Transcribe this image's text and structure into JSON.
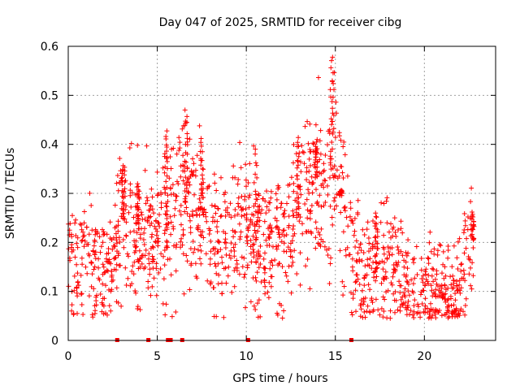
{
  "chart_data": {
    "type": "scatter",
    "title": "Day 047 of 2025, SRMTID for receiver cibg",
    "xlabel": "GPS time / hours",
    "ylabel": "SRMTID / TECUs",
    "xlim": [
      0,
      24
    ],
    "ylim": [
      0,
      0.6
    ],
    "xticks": [
      0,
      5,
      10,
      15,
      20
    ],
    "xtick_labels": [
      "0",
      "5",
      "10",
      "15",
      "20"
    ],
    "yticks": [
      0,
      0.1,
      0.2,
      0.3,
      0.4,
      0.5,
      0.6
    ],
    "ytick_labels": [
      "0",
      "0.1",
      "0.2",
      "0.3",
      "0.4",
      "0.5",
      "0.6"
    ],
    "grid": true,
    "marker": "+",
    "color": "#ff0000",
    "series_trend": {
      "name": "SRMTID",
      "x": [
        0.0,
        0.5,
        1.0,
        1.5,
        2.0,
        2.5,
        3.0,
        3.5,
        4.0,
        4.5,
        5.0,
        5.5,
        6.0,
        6.5,
        7.0,
        7.5,
        8.0,
        8.5,
        9.0,
        9.5,
        10.0,
        10.5,
        11.0,
        11.5,
        12.0,
        12.5,
        13.0,
        13.5,
        14.0,
        14.5,
        15.0,
        15.5,
        16.0,
        16.5,
        17.0,
        17.5,
        18.0,
        18.5,
        19.0,
        19.5,
        20.0,
        20.5,
        21.0,
        21.5,
        22.0,
        22.5
      ],
      "y": [
        0.17,
        0.15,
        0.17,
        0.16,
        0.14,
        0.18,
        0.25,
        0.23,
        0.22,
        0.2,
        0.22,
        0.24,
        0.25,
        0.28,
        0.27,
        0.26,
        0.2,
        0.18,
        0.2,
        0.22,
        0.24,
        0.16,
        0.18,
        0.2,
        0.19,
        0.2,
        0.26,
        0.3,
        0.34,
        0.3,
        0.36,
        0.26,
        0.2,
        0.14,
        0.12,
        0.15,
        0.16,
        0.14,
        0.12,
        0.11,
        0.1,
        0.1,
        0.09,
        0.09,
        0.1,
        0.2
      ]
    },
    "spikes": [
      {
        "x": 3.1,
        "ymax": 0.36
      },
      {
        "x": 3.9,
        "ymax": 0.32
      },
      {
        "x": 5.5,
        "ymax": 0.43
      },
      {
        "x": 6.6,
        "ymax": 0.47
      },
      {
        "x": 7.5,
        "ymax": 0.4
      },
      {
        "x": 10.5,
        "ymax": 0.4
      },
      {
        "x": 12.9,
        "ymax": 0.41
      },
      {
        "x": 13.9,
        "ymax": 0.4
      },
      {
        "x": 14.8,
        "ymax": 0.58
      },
      {
        "x": 15.3,
        "ymax": 0.3
      },
      {
        "x": 17.3,
        "ymax": 0.26
      },
      {
        "x": 22.7,
        "ymax": 0.26
      }
    ],
    "zero_markers_x": [
      2.75,
      4.5,
      5.6,
      5.75,
      6.4,
      10.1,
      15.9
    ]
  }
}
